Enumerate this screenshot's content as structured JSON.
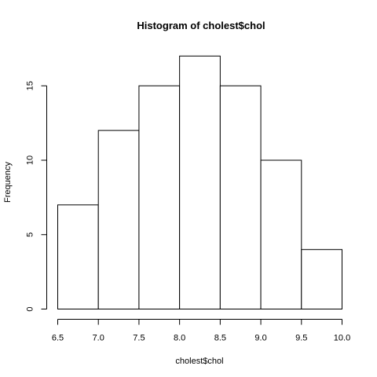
{
  "chart_data": {
    "type": "bar",
    "title": "Histogram of cholest$chol",
    "xlabel": "cholest$chol",
    "ylabel": "Frequency",
    "bins": [
      {
        "start": 6.5,
        "end": 7.0,
        "count": 7
      },
      {
        "start": 7.0,
        "end": 7.5,
        "count": 12
      },
      {
        "start": 7.5,
        "end": 8.0,
        "count": 15
      },
      {
        "start": 8.0,
        "end": 8.5,
        "count": 17
      },
      {
        "start": 8.5,
        "end": 9.0,
        "count": 15
      },
      {
        "start": 9.0,
        "end": 9.5,
        "count": 10
      },
      {
        "start": 9.5,
        "end": 10.0,
        "count": 4
      }
    ],
    "xlim": [
      6.5,
      10.0
    ],
    "ylim": [
      0,
      17
    ],
    "x_ticks": [
      6.5,
      7.0,
      7.5,
      8.0,
      8.5,
      9.0,
      9.5,
      10.0
    ],
    "x_tick_labels": [
      "6.5",
      "7.0",
      "7.5",
      "8.0",
      "8.5",
      "9.0",
      "9.5",
      "10.0"
    ],
    "y_ticks": [
      0,
      5,
      10,
      15
    ],
    "y_tick_labels": [
      "0",
      "5",
      "10",
      "15"
    ],
    "bar_fill": "#ffffff",
    "bar_stroke": "#000000",
    "grid": false,
    "legend": "none"
  }
}
